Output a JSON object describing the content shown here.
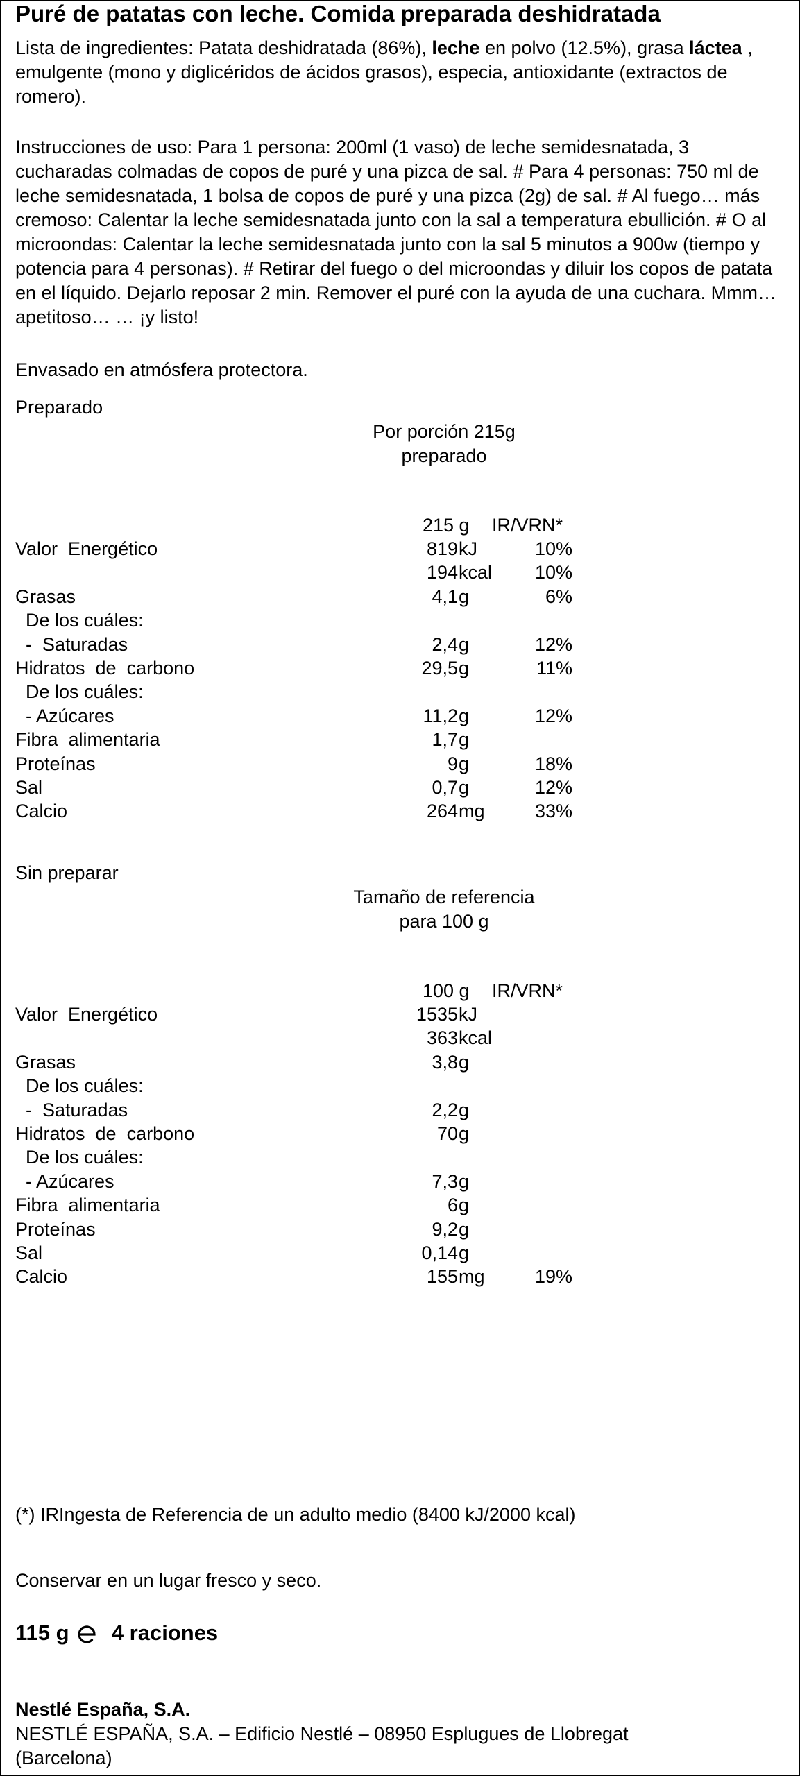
{
  "title": "Puré de patatas con leche. Comida preparada deshidratada",
  "ingredients": {
    "prefix": "Lista de ingredientes: Patata deshidratada (86%), ",
    "leche_bold": "leche",
    "middle": " en polvo (12.5%), grasa ",
    "lactea_bold": "láctea",
    "suffix": " , emulgente (mono y diglicéridos de ácidos grasos), especia, antioxidante (extractos de romero)."
  },
  "instructions": "Instrucciones de uso: Para 1 persona: 200ml (1 vaso) de leche semidesnatada, 3 cucharadas colmadas de copos de puré y una pizca de sal. # Para 4 personas: 750 ml de leche semidesnatada, 1 bolsa de copos de puré y una pizca (2g) de sal. # Al fuego… más cremoso: Calentar la leche semidesnatada junto con la sal a temperatura ebullición. # O al microondas: Calentar la leche semidesnatada junto con la sal 5 minutos a 900w (tiempo y potencia para 4 personas). # Retirar del fuego o del microondas y diluir los copos de patata en el líquido. Dejarlo reposar 2 min. Remover el puré con la ayuda de una cuchara. Mmm… apetitoso… … ¡y listo!",
  "packaging": "Envasado en atmósfera protectora.",
  "prepared": {
    "section_label": "Preparado",
    "portion_line1": "Por porción 215g",
    "portion_line2": "preparado",
    "head_amount": "215 g",
    "head_ir": "IR/VRN*",
    "rows": [
      {
        "label": "Valor  Energético",
        "num": "819",
        "unit": "kJ",
        "ir": "10%"
      },
      {
        "label": "",
        "num": "194",
        "unit": "kcal",
        "ir": "10%"
      },
      {
        "label": "Grasas",
        "num": "4,1",
        "unit": "g",
        "ir": "6%"
      },
      {
        "label": "  De los cuáles:",
        "num": "",
        "unit": "",
        "ir": ""
      },
      {
        "label": "  -  Saturadas",
        "num": "2,4",
        "unit": "g",
        "ir": "12%"
      },
      {
        "label": "Hidratos  de  carbono",
        "num": "29,5",
        "unit": "g",
        "ir": "11%"
      },
      {
        "label": "  De los cuáles:",
        "num": "",
        "unit": "",
        "ir": ""
      },
      {
        "label": "  - Azúcares",
        "num": "11,2",
        "unit": "g",
        "ir": "12%"
      },
      {
        "label": "Fibra  alimentaria",
        "num": "1,7",
        "unit": "g",
        "ir": ""
      },
      {
        "label": "Proteínas",
        "num": "9",
        "unit": "g",
        "ir": "18%"
      },
      {
        "label": "Sal",
        "num": "0,7",
        "unit": "g",
        "ir": "12%"
      },
      {
        "label": "Calcio",
        "num": "264",
        "unit": "mg",
        "ir": "33%"
      }
    ]
  },
  "unprepared": {
    "section_label": "Sin preparar",
    "ref_line1": "Tamaño de referencia",
    "ref_line2": "para 100 g",
    "head_amount": "100 g",
    "head_ir": "IR/VRN*",
    "rows": [
      {
        "label": "Valor  Energético",
        "num": "1535",
        "unit": "kJ",
        "ir": ""
      },
      {
        "label": "",
        "num": "363",
        "unit": "kcal",
        "ir": ""
      },
      {
        "label": "Grasas",
        "num": "3,8",
        "unit": "g",
        "ir": ""
      },
      {
        "label": "  De los cuáles:",
        "num": "",
        "unit": "",
        "ir": ""
      },
      {
        "label": "  -  Saturadas",
        "num": "2,2",
        "unit": "g",
        "ir": ""
      },
      {
        "label": "Hidratos  de  carbono",
        "num": "70",
        "unit": "g",
        "ir": ""
      },
      {
        "label": "  De los cuáles:",
        "num": "",
        "unit": "",
        "ir": ""
      },
      {
        "label": "  - Azúcares",
        "num": "7,3",
        "unit": "g",
        "ir": ""
      },
      {
        "label": "Fibra  alimentaria",
        "num": "6",
        "unit": "g",
        "ir": ""
      },
      {
        "label": "Proteínas",
        "num": "9,2",
        "unit": "g",
        "ir": ""
      },
      {
        "label": "Sal",
        "num": "0,14",
        "unit": "g",
        "ir": ""
      },
      {
        "label": "Calcio",
        "num": "155",
        "unit": "mg",
        "ir": "19%"
      }
    ]
  },
  "footnote": "(*) IRIngesta de Referencia de un adulto medio (8400 kJ/2000 kcal)",
  "storage": "Conservar en un lugar fresco y seco.",
  "net_weight": "115 g",
  "estimated_sign_icon": "estimated-e-icon",
  "servings": "4 raciones",
  "company": "Nestlé España, S.A.",
  "address_line1": "NESTLÉ ESPAÑA, S.A. – Edificio  Nestlé – 08950 Esplugues de Llobregat",
  "address_line2": "(Barcelona)"
}
